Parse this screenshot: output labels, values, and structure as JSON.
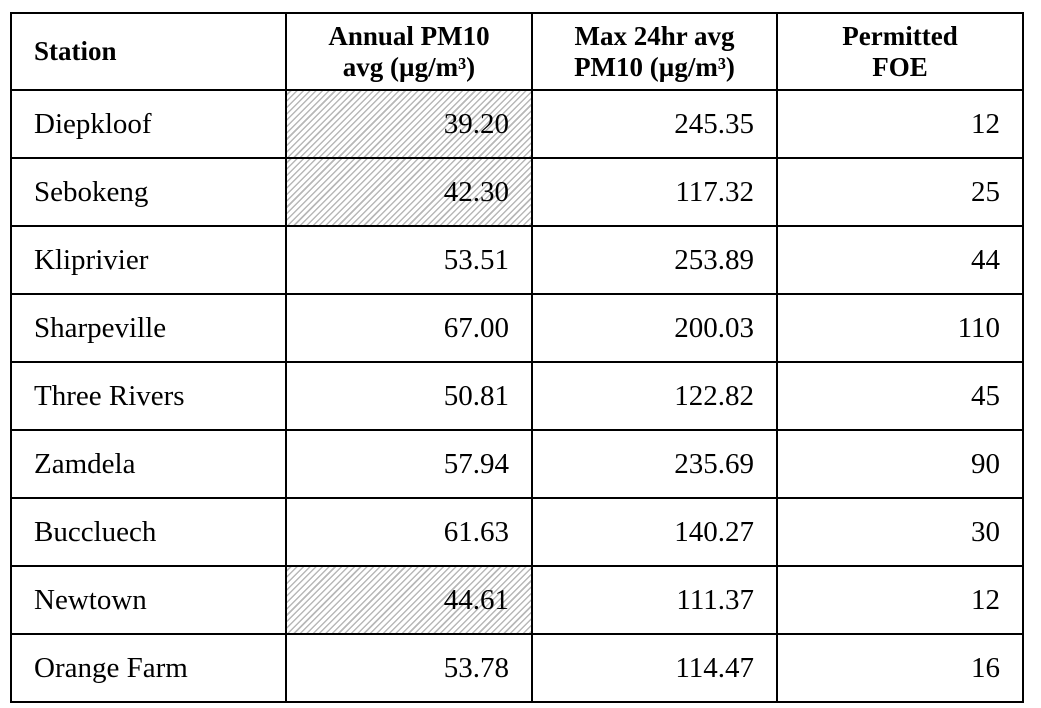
{
  "table": {
    "headers": {
      "station": "Station",
      "annual_line1": "Annual PM10",
      "annual_line2": "avg (µg/m³)",
      "max_line1": "Max 24hr avg",
      "max_line2": "PM10 (µg/m³)",
      "foe_line1": "Permitted",
      "foe_line2": "FOE"
    },
    "rows": [
      {
        "station": "Diepkloof",
        "annual": "39.20",
        "max": "245.35",
        "foe": "12",
        "annual_hatched": true
      },
      {
        "station": "Sebokeng",
        "annual": "42.30",
        "max": "117.32",
        "foe": "25",
        "annual_hatched": true
      },
      {
        "station": "Kliprivier",
        "annual": "53.51",
        "max": "253.89",
        "foe": "44",
        "annual_hatched": false
      },
      {
        "station": "Sharpeville",
        "annual": "67.00",
        "max": "200.03",
        "foe": "110",
        "annual_hatched": false
      },
      {
        "station": "Three Rivers",
        "annual": "50.81",
        "max": "122.82",
        "foe": "45",
        "annual_hatched": false
      },
      {
        "station": "Zamdela",
        "annual": "57.94",
        "max": "235.69",
        "foe": "90",
        "annual_hatched": false
      },
      {
        "station": "Buccluech",
        "annual": "61.63",
        "max": "140.27",
        "foe": "30",
        "annual_hatched": false
      },
      {
        "station": "Newtown",
        "annual": "44.61",
        "max": "111.37",
        "foe": "12",
        "annual_hatched": true
      },
      {
        "station": "Orange Farm",
        "annual": "53.78",
        "max": "114.47",
        "foe": "16",
        "annual_hatched": false
      }
    ]
  }
}
